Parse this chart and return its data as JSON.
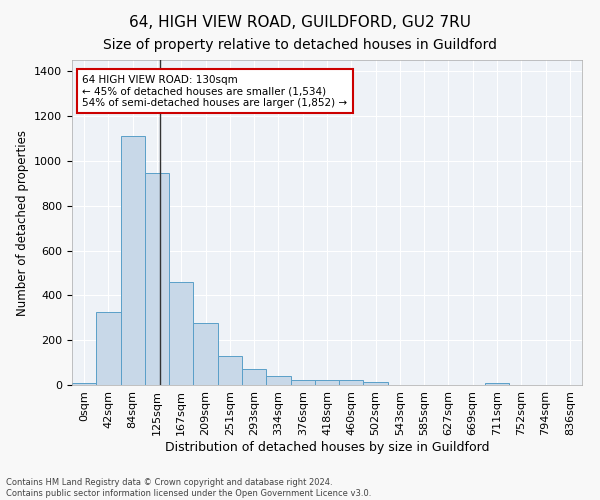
{
  "title": "64, HIGH VIEW ROAD, GUILDFORD, GU2 7RU",
  "subtitle": "Size of property relative to detached houses in Guildford",
  "xlabel": "Distribution of detached houses by size in Guildford",
  "ylabel": "Number of detached properties",
  "categories": [
    "0sqm",
    "42sqm",
    "84sqm",
    "125sqm",
    "167sqm",
    "209sqm",
    "251sqm",
    "293sqm",
    "334sqm",
    "376sqm",
    "418sqm",
    "460sqm",
    "502sqm",
    "543sqm",
    "585sqm",
    "627sqm",
    "669sqm",
    "711sqm",
    "752sqm",
    "794sqm",
    "836sqm"
  ],
  "values": [
    10,
    325,
    1110,
    945,
    460,
    275,
    130,
    70,
    40,
    22,
    22,
    22,
    15,
    0,
    0,
    0,
    0,
    10,
    0,
    0,
    0
  ],
  "bar_color": "#c8d8e8",
  "bar_edge_color": "#5a9fc8",
  "highlight_line_color": "#333333",
  "annotation_text": "64 HIGH VIEW ROAD: 130sqm\n← 45% of detached houses are smaller (1,534)\n54% of semi-detached houses are larger (1,852) →",
  "annotation_box_color": "#ffffff",
  "annotation_box_edge_color": "#cc0000",
  "ylim": [
    0,
    1450
  ],
  "background_color": "#eef2f7",
  "fig_background_color": "#f8f8f8",
  "grid_color": "#ffffff",
  "footnote1": "Contains HM Land Registry data © Crown copyright and database right 2024.",
  "footnote2": "Contains public sector information licensed under the Open Government Licence v3.0.",
  "title_fontsize": 11,
  "subtitle_fontsize": 10,
  "ylabel_fontsize": 8.5,
  "xlabel_fontsize": 9,
  "tick_fontsize": 8,
  "annotation_fontsize": 7.5
}
